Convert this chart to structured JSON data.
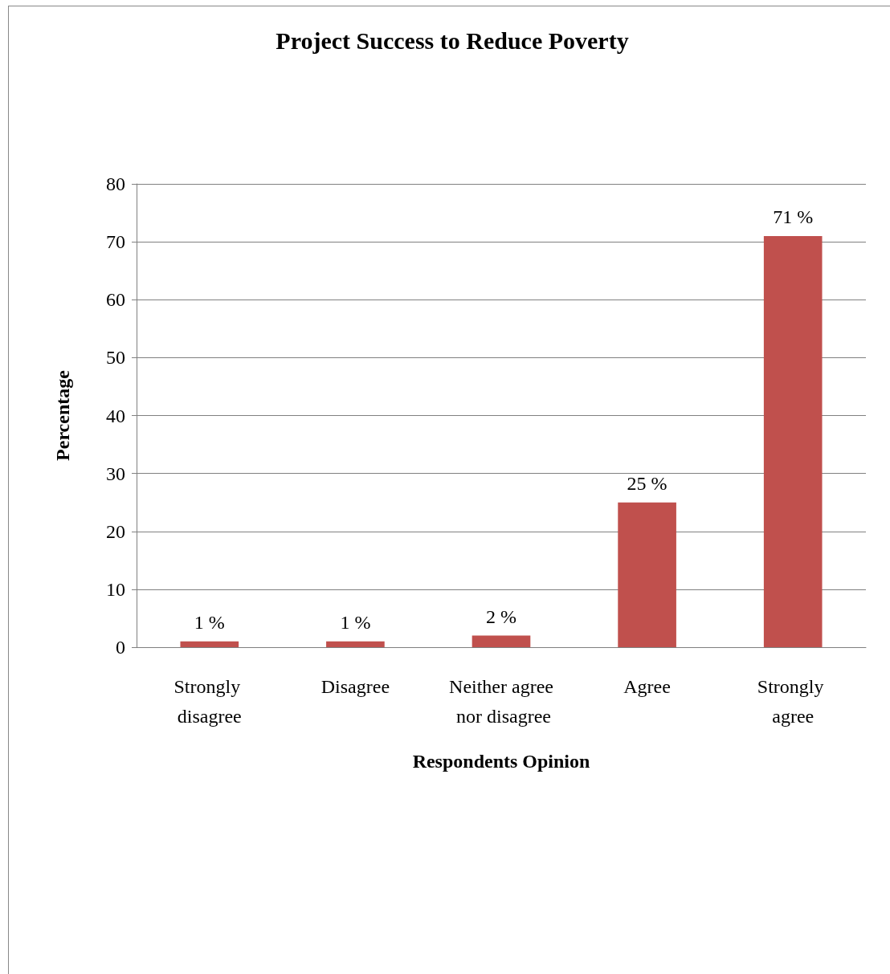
{
  "chart_data": {
    "type": "bar",
    "title": "Project Success to Reduce Poverty",
    "xlabel": "Respondents Opinion",
    "ylabel": "Percentage",
    "categories": [
      "Strongly disagree",
      "Disagree",
      "Neither agree nor disagree",
      "Agree",
      "Strongly agree"
    ],
    "values": [
      1,
      1,
      2,
      25,
      71
    ],
    "value_labels": [
      "1 %",
      "1 %",
      "2 %",
      "25 %",
      "71 %"
    ],
    "color": "#c0504d",
    "ylim": [
      0,
      80
    ],
    "yticks": [
      0,
      10,
      20,
      30,
      40,
      50,
      60,
      70,
      80
    ],
    "grid": "y"
  }
}
